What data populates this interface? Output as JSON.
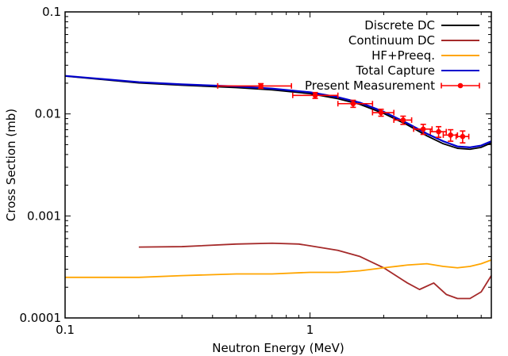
{
  "chart_data": {
    "type": "line",
    "title": "",
    "xlabel": "Neutron Energy (MeV)",
    "ylabel": "Cross Section (mb)",
    "xscale": "log",
    "yscale": "log",
    "xlim": [
      0.1,
      5.5
    ],
    "ylim": [
      0.0001,
      0.1
    ],
    "x_ticks": [
      {
        "value": 0.1,
        "label": "0.1"
      },
      {
        "value": 1,
        "label": "1"
      }
    ],
    "y_ticks": [
      {
        "value": 0.0001,
        "label": "0.0001"
      },
      {
        "value": 0.001,
        "label": "0.001"
      },
      {
        "value": 0.01,
        "label": "0.01"
      },
      {
        "value": 0.1,
        "label": "0.1"
      }
    ],
    "grid": false,
    "legend_position": "top-right",
    "series": [
      {
        "name": "Discrete DC",
        "color": "#000000",
        "style": "line",
        "x": [
          0.1,
          0.2,
          0.3,
          0.5,
          0.7,
          1.0,
          1.3,
          1.6,
          2.0,
          2.5,
          3.0,
          3.5,
          4.0,
          4.5,
          5.0,
          5.5
        ],
        "y": [
          0.0235,
          0.0201,
          0.0191,
          0.0181,
          0.0172,
          0.0158,
          0.0141,
          0.0124,
          0.0101,
          0.0078,
          0.0061,
          0.0051,
          0.0046,
          0.0045,
          0.0047,
          0.0052
        ]
      },
      {
        "name": "Continuum DC",
        "color": "#a52a2a",
        "style": "line",
        "x": [
          0.2,
          0.3,
          0.5,
          0.7,
          0.9,
          1.0,
          1.3,
          1.6,
          2.0,
          2.5,
          2.8,
          3.2,
          3.6,
          4.0,
          4.5,
          5.0,
          5.5
        ],
        "y": [
          0.000495,
          0.0005,
          0.00053,
          0.00054,
          0.00053,
          0.00051,
          0.00046,
          0.0004,
          0.00031,
          0.00022,
          0.00019,
          0.00022,
          0.00017,
          0.000155,
          0.000155,
          0.00018,
          0.00026
        ]
      },
      {
        "name": "HF+Preeq.",
        "color": "#ffa500",
        "style": "line",
        "x": [
          0.1,
          0.2,
          0.3,
          0.5,
          0.7,
          1.0,
          1.3,
          1.6,
          2.0,
          2.5,
          3.0,
          3.5,
          4.0,
          4.5,
          5.0,
          5.5
        ],
        "y": [
          0.00025,
          0.00025,
          0.00026,
          0.00027,
          0.00027,
          0.00028,
          0.00028,
          0.00029,
          0.00031,
          0.00033,
          0.00034,
          0.00032,
          0.00031,
          0.00032,
          0.00034,
          0.00037
        ]
      },
      {
        "name": "Total Capture",
        "color": "#0000cd",
        "style": "line",
        "x": [
          0.1,
          0.2,
          0.3,
          0.5,
          0.7,
          1.0,
          1.3,
          1.6,
          2.0,
          2.5,
          3.0,
          3.5,
          4.0,
          4.5,
          5.0,
          5.5
        ],
        "y": [
          0.0236,
          0.0205,
          0.0195,
          0.0186,
          0.0177,
          0.0163,
          0.0146,
          0.0129,
          0.0105,
          0.0081,
          0.0064,
          0.0054,
          0.0048,
          0.0047,
          0.0049,
          0.0054
        ]
      },
      {
        "name": "Present Measurement",
        "color": "#ff0000",
        "style": "errorbar",
        "points": [
          {
            "x": 0.63,
            "y": 0.0188,
            "xlo": 0.42,
            "xhi": 0.84,
            "ylo": 0.0178,
            "yhi": 0.0198
          },
          {
            "x": 1.05,
            "y": 0.0152,
            "xlo": 0.85,
            "xhi": 1.3,
            "ylo": 0.0142,
            "yhi": 0.0162
          },
          {
            "x": 1.5,
            "y": 0.0126,
            "xlo": 1.3,
            "xhi": 1.8,
            "ylo": 0.0116,
            "yhi": 0.0136
          },
          {
            "x": 1.95,
            "y": 0.0103,
            "xlo": 1.8,
            "xhi": 2.2,
            "ylo": 0.0095,
            "yhi": 0.0111
          },
          {
            "x": 2.4,
            "y": 0.0087,
            "xlo": 2.2,
            "xhi": 2.6,
            "ylo": 0.0079,
            "yhi": 0.0095
          },
          {
            "x": 2.9,
            "y": 0.0071,
            "xlo": 2.65,
            "xhi": 3.15,
            "ylo": 0.0063,
            "yhi": 0.0079
          },
          {
            "x": 3.35,
            "y": 0.0067,
            "xlo": 3.1,
            "xhi": 3.6,
            "ylo": 0.0059,
            "yhi": 0.0075
          },
          {
            "x": 3.75,
            "y": 0.0062,
            "xlo": 3.5,
            "xhi": 4.0,
            "ylo": 0.0054,
            "yhi": 0.007
          },
          {
            "x": 4.2,
            "y": 0.006,
            "xlo": 3.95,
            "xhi": 4.45,
            "ylo": 0.0052,
            "yhi": 0.0068
          }
        ]
      }
    ]
  }
}
